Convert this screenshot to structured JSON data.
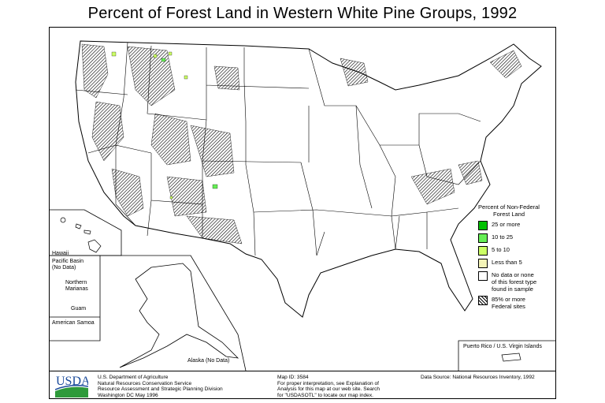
{
  "title": "Percent of Forest Land in Western White Pine Groups, 1992",
  "legend": {
    "heading": "Percent of Non-Federal Forest Land",
    "items": [
      {
        "label": "25 or more",
        "color": "#00c000"
      },
      {
        "label": "10 to 25",
        "color": "#66ee55"
      },
      {
        "label": "5 to 10",
        "color": "#ccff66"
      },
      {
        "label": "Less than 5",
        "color": "#f4f4b8"
      },
      {
        "label": "No data or none of this forest type found in sample",
        "color": "#ffffff"
      },
      {
        "label": "85% or more Federal sites",
        "color": "hatched"
      }
    ]
  },
  "insets": {
    "hawaii": "Hawaii",
    "pacific_basin": "Pacific Basin (No Data)",
    "northern_marianas": "Northern Marianas",
    "guam": "Guam",
    "american_samoa": "American Samoa",
    "alaska": "Alaska (No Data)",
    "puerto_rico": "Puerto Rico / U.S. Virgin Islands"
  },
  "footer": {
    "logo": "USDA",
    "agency": [
      "U.S. Department of Agriculture",
      "Natural Resources Conservation Service",
      "Resource Assessment and Strategic Planning Division",
      "Washington DC   May 1996"
    ],
    "map_id": "Map ID: 3584",
    "interpretation": [
      "For proper interpretation, see Explanation of",
      "Analysis for this map at our web site. Search",
      "for \"USDASOTL\" to locate our map index."
    ],
    "data_source": "Data Source:  National Resources Inventory, 1992"
  }
}
